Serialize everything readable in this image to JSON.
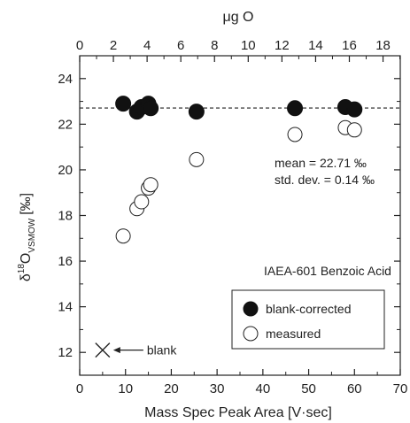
{
  "chart_data": {
    "type": "scatter",
    "xlabel": "Mass Spec Peak Area [V·sec]",
    "top_xlabel": "μg O",
    "ylabel": {
      "main": "δ",
      "sup": "18",
      "o": "O",
      "sub": "VSMOW",
      "unit": "[‰]"
    },
    "xlim": [
      0,
      70
    ],
    "ylim": [
      11,
      25
    ],
    "xticks": [
      "0",
      "10",
      "20",
      "30",
      "40",
      "50",
      "60",
      "70"
    ],
    "yticks": [
      "12",
      "14",
      "16",
      "18",
      "20",
      "22",
      "24"
    ],
    "top_xticks": [
      "0",
      "2",
      "4",
      "6",
      "8",
      "10",
      "12",
      "14",
      "16",
      "18"
    ],
    "top_axis_peak_area_per_ug": 3.68,
    "grid": false,
    "reference_line": {
      "y": 22.71,
      "style": "dashed"
    },
    "series": [
      {
        "name": "blank-corrected",
        "marker": "filled-circle",
        "points": [
          {
            "x": 9.5,
            "y": 22.9
          },
          {
            "x": 12.5,
            "y": 22.55
          },
          {
            "x": 13.5,
            "y": 22.75
          },
          {
            "x": 15.0,
            "y": 22.9
          },
          {
            "x": 15.5,
            "y": 22.7
          },
          {
            "x": 25.5,
            "y": 22.55
          },
          {
            "x": 47.0,
            "y": 22.7
          },
          {
            "x": 58.0,
            "y": 22.75
          },
          {
            "x": 60.0,
            "y": 22.65
          }
        ]
      },
      {
        "name": "measured",
        "marker": "open-circle",
        "points": [
          {
            "x": 9.5,
            "y": 17.1
          },
          {
            "x": 12.5,
            "y": 18.3
          },
          {
            "x": 13.5,
            "y": 18.6
          },
          {
            "x": 15.0,
            "y": 19.2
          },
          {
            "x": 15.5,
            "y": 19.35
          },
          {
            "x": 25.5,
            "y": 20.45
          },
          {
            "x": 47.0,
            "y": 21.55
          },
          {
            "x": 58.0,
            "y": 21.85
          },
          {
            "x": 60.0,
            "y": 21.75
          }
        ]
      }
    ],
    "blank_point": {
      "x": 5,
      "y": 12.1,
      "marker": "x",
      "label": "blank"
    },
    "annotations": {
      "mean": "mean = 22.71 ‰",
      "std": "std. dev. = 0.14 ‰",
      "sample": "IAEA-601 Benzoic Acid"
    },
    "legend": {
      "placement": "bottom-right",
      "entries": [
        "blank-corrected",
        "measured"
      ]
    }
  }
}
